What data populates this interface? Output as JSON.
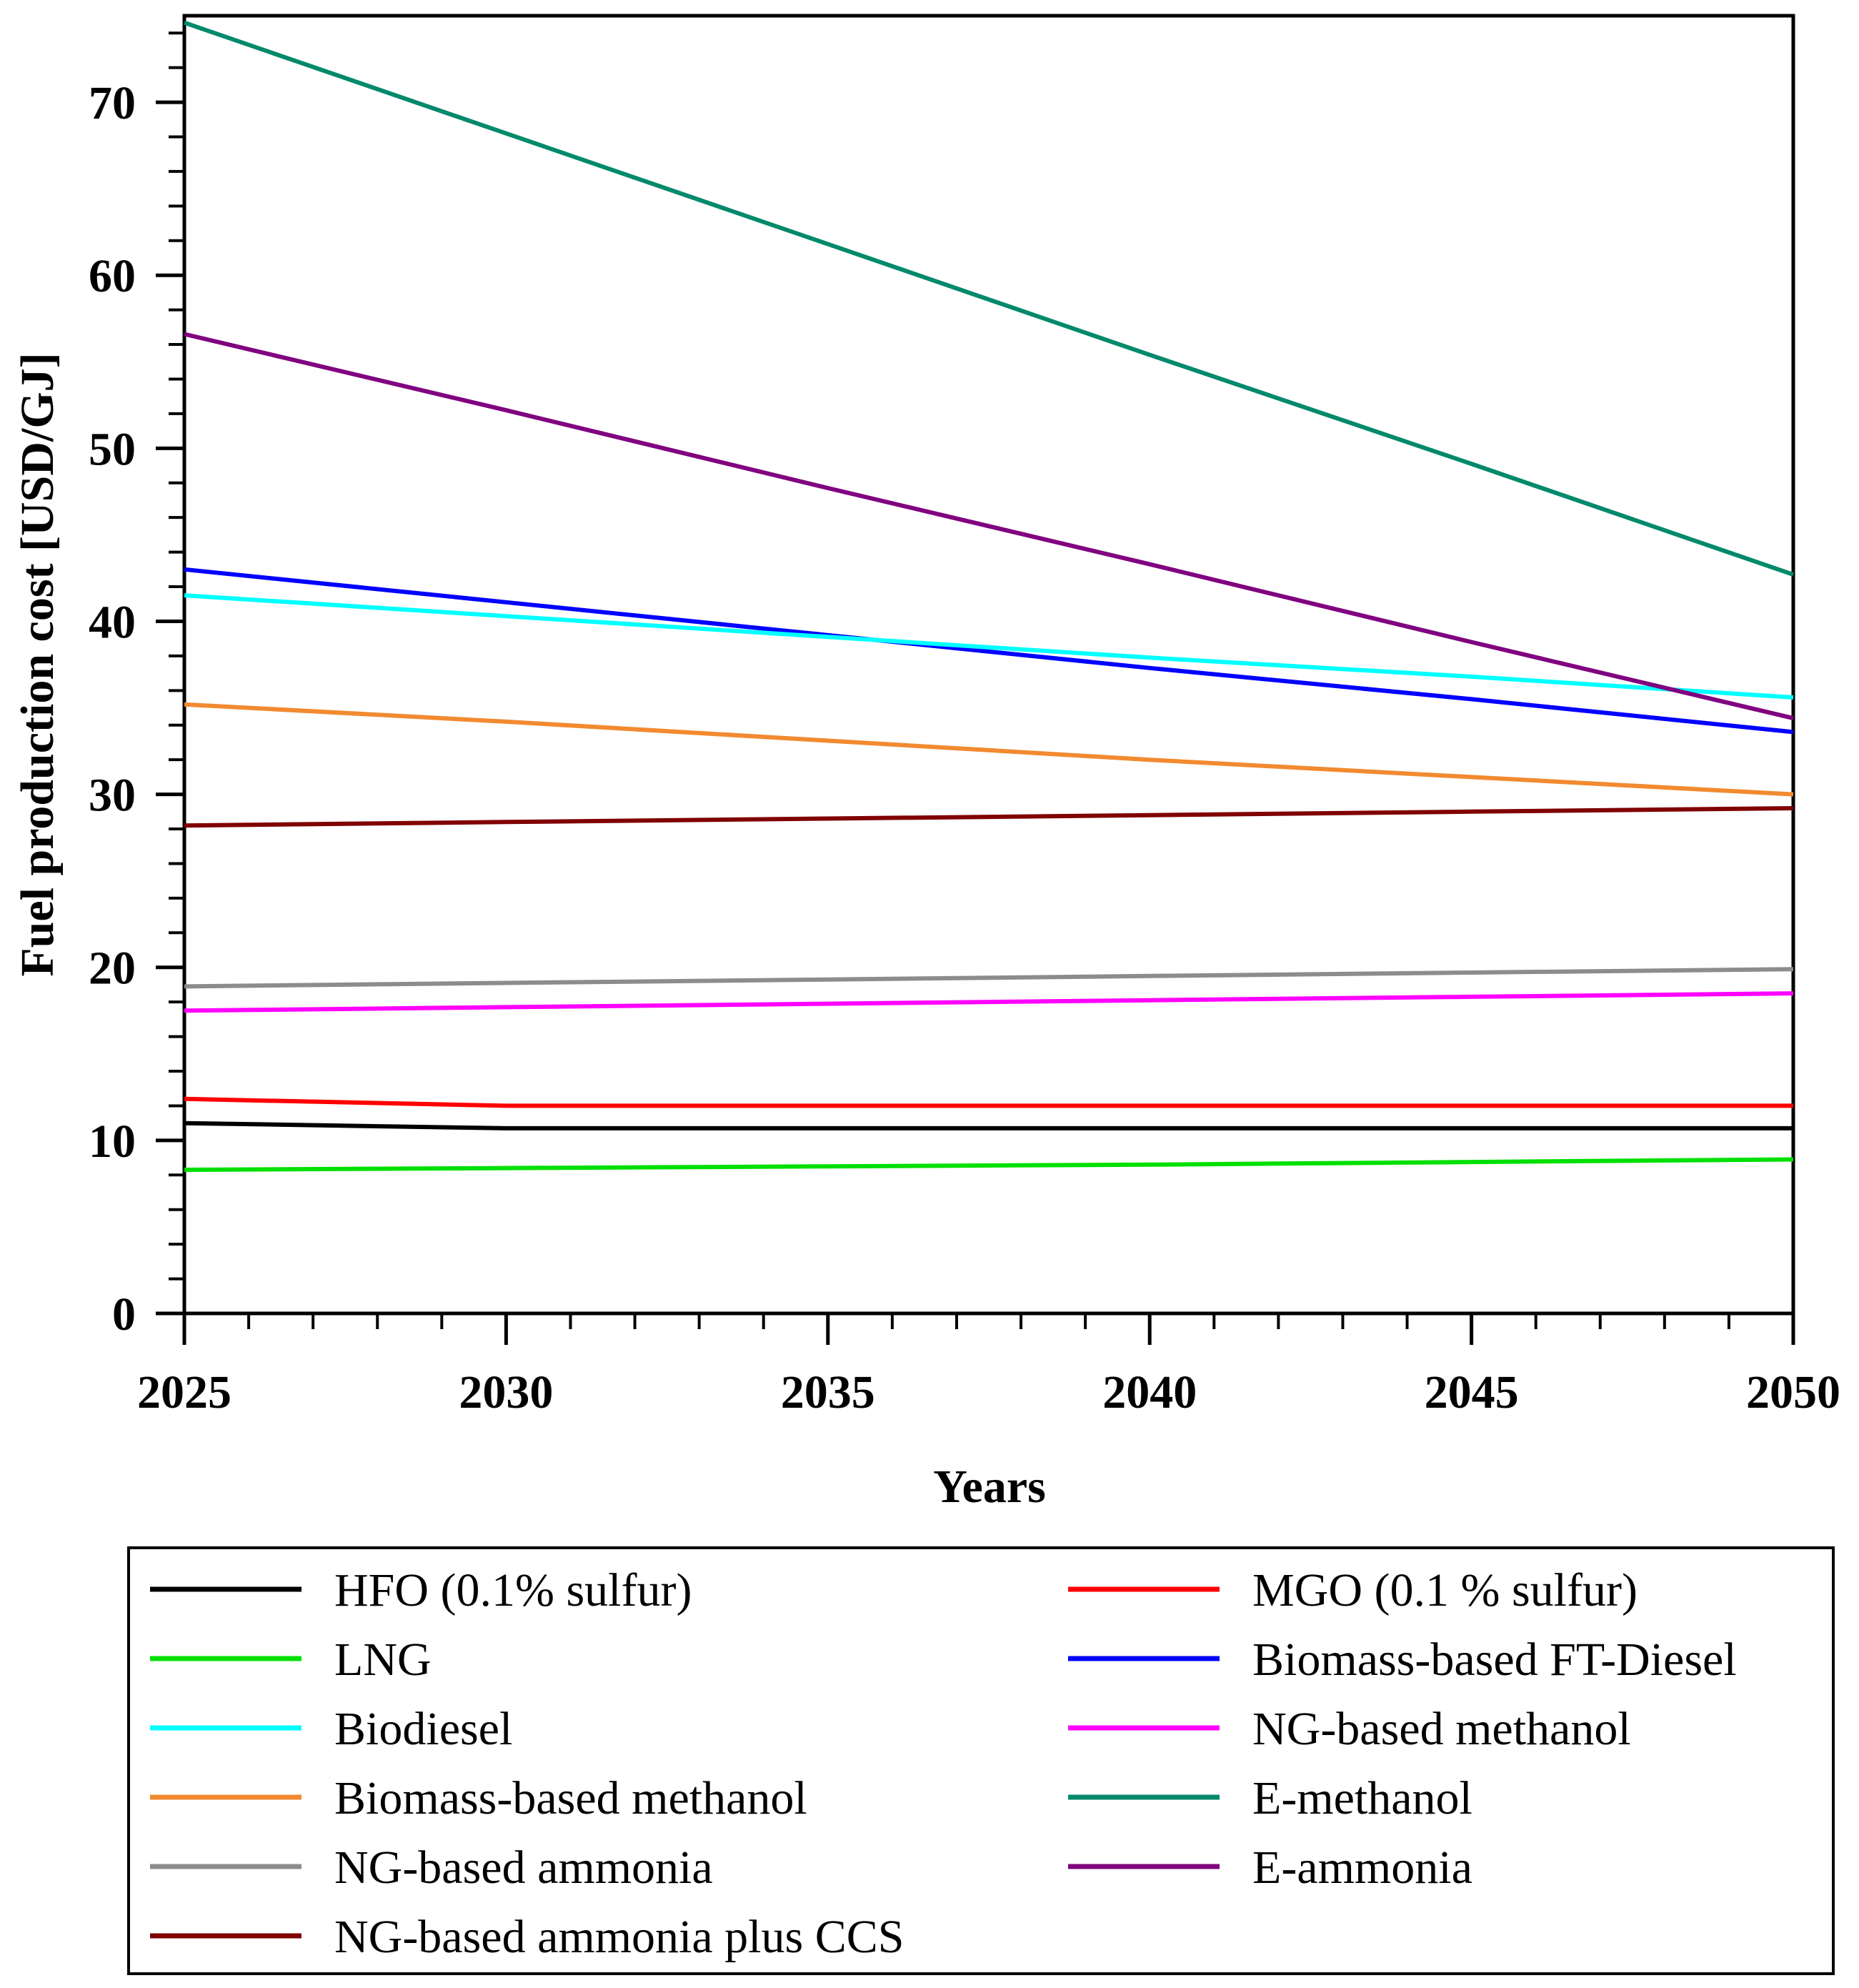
{
  "chart_data": {
    "type": "line",
    "title": "",
    "xlabel": "Years",
    "ylabel": "Fuel  production cost [USD/GJ]",
    "xlim": [
      2025,
      2050
    ],
    "ylim": [
      0,
      75
    ],
    "x_ticks": [
      2025,
      2030,
      2035,
      2040,
      2045,
      2050
    ],
    "x_tick_labels": [
      "2025",
      "2030",
      "2035",
      "2040",
      "2045",
      "2050"
    ],
    "y_ticks": [
      0,
      10,
      20,
      30,
      40,
      50,
      60,
      70
    ],
    "y_tick_labels": [
      "0",
      "10",
      "20",
      "30",
      "40",
      "50",
      "60",
      "70"
    ],
    "grid": false,
    "legend_position": "bottom",
    "series": [
      {
        "name": "HFO (0.1% sulfur)",
        "color": "#000000",
        "x": [
          2025,
          2030,
          2035,
          2040,
          2045,
          2050
        ],
        "y": [
          11.0,
          10.7,
          10.7,
          10.7,
          10.7,
          10.7
        ]
      },
      {
        "name": "MGO (0.1 % sulfur)",
        "color": "#ff0000",
        "x": [
          2025,
          2030,
          2035,
          2040,
          2045,
          2050
        ],
        "y": [
          12.4,
          12.0,
          12.0,
          12.0,
          12.0,
          12.0
        ]
      },
      {
        "name": "LNG",
        "color": "#00e000",
        "x": [
          2025,
          2030,
          2035,
          2040,
          2045,
          2050
        ],
        "y": [
          8.3,
          8.4,
          8.5,
          8.6,
          8.75,
          8.9
        ]
      },
      {
        "name": "Biomass-based FT-Diesel",
        "color": "#0000ff",
        "x": [
          2025,
          2030,
          2035,
          2040,
          2045,
          2050
        ],
        "y": [
          43.0,
          41.1,
          39.2,
          37.3,
          35.5,
          33.6
        ]
      },
      {
        "name": "Biodiesel",
        "color": "#00ffff",
        "x": [
          2025,
          2030,
          2035,
          2040,
          2045,
          2050
        ],
        "y": [
          41.5,
          40.3,
          39.1,
          37.9,
          36.8,
          35.6
        ]
      },
      {
        "name": "NG-based methanol",
        "color": "#ff00ff",
        "x": [
          2025,
          2030,
          2035,
          2040,
          2045,
          2050
        ],
        "y": [
          17.5,
          17.7,
          17.9,
          18.1,
          18.3,
          18.5
        ]
      },
      {
        "name": "Biomass-based methanol",
        "color": "#f28a30",
        "x": [
          2025,
          2030,
          2035,
          2040,
          2045,
          2050
        ],
        "y": [
          35.2,
          34.2,
          33.1,
          32.0,
          31.0,
          30.0
        ]
      },
      {
        "name": "E-methanol",
        "color": "#00896b",
        "x": [
          2025,
          2030,
          2035,
          2040,
          2045,
          2050
        ],
        "y": [
          74.6,
          68.2,
          61.8,
          55.4,
          49.1,
          42.7
        ]
      },
      {
        "name": "NG-based ammonia",
        "color": "#8c8c8c",
        "x": [
          2025,
          2030,
          2035,
          2040,
          2045,
          2050
        ],
        "y": [
          18.9,
          19.1,
          19.3,
          19.5,
          19.7,
          19.9
        ]
      },
      {
        "name": "E-ammonia",
        "color": "#800080",
        "x": [
          2025,
          2030,
          2035,
          2040,
          2045,
          2050
        ],
        "y": [
          56.6,
          52.2,
          47.7,
          43.3,
          38.8,
          34.4
        ]
      },
      {
        "name": "NG-based ammonia plus CCS",
        "color": "#800000",
        "x": [
          2025,
          2030,
          2035,
          2040,
          2045,
          2050
        ],
        "y": [
          28.2,
          28.4,
          28.6,
          28.8,
          29.0,
          29.2
        ]
      }
    ]
  }
}
